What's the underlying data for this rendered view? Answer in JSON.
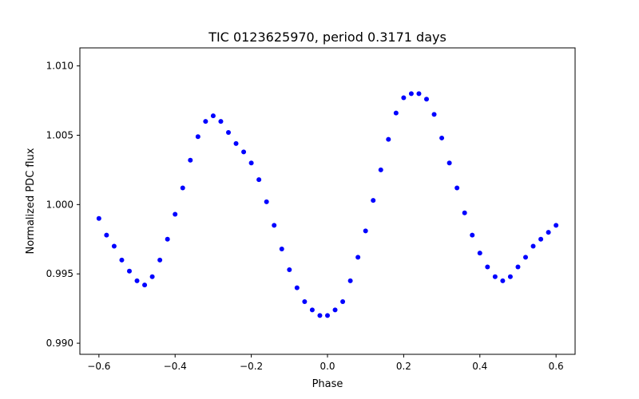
{
  "chart_data": {
    "type": "scatter",
    "title": "TIC 0123625970, period 0.3171 days",
    "xlabel": "Phase",
    "ylabel": "Normalized PDC flux",
    "xlim": [
      -0.65,
      0.65
    ],
    "ylim": [
      0.9892,
      1.0113
    ],
    "xticks": [
      -0.6,
      -0.4,
      -0.2,
      0.0,
      0.2,
      0.4,
      0.6
    ],
    "xtick_labels": [
      "−0.6",
      "−0.4",
      "−0.2",
      "0.0",
      "0.2",
      "0.4",
      "0.6"
    ],
    "yticks": [
      0.99,
      0.995,
      1.0,
      1.005,
      1.01
    ],
    "ytick_labels": [
      "0.990",
      "0.995",
      "1.000",
      "1.005",
      "1.010"
    ],
    "grid": false,
    "marker_color": "#0000ff",
    "series": [
      {
        "x": [
          -0.6,
          -0.58,
          -0.56,
          -0.54,
          -0.52,
          -0.5,
          -0.48,
          -0.46,
          -0.44,
          -0.42,
          -0.4,
          -0.38,
          -0.36,
          -0.34,
          -0.32,
          -0.3,
          -0.28,
          -0.26,
          -0.24,
          -0.22,
          -0.2,
          -0.18,
          -0.16,
          -0.14,
          -0.12,
          -0.1,
          -0.08,
          -0.06,
          -0.04,
          -0.02,
          0.0,
          0.02,
          0.04,
          0.06,
          0.08,
          0.1,
          0.12,
          0.14,
          0.16,
          0.18,
          0.2,
          0.22,
          0.24,
          0.26,
          0.28,
          0.3,
          0.32,
          0.34,
          0.36,
          0.38,
          0.4,
          0.42,
          0.44,
          0.46,
          0.48,
          0.5,
          0.52,
          0.54,
          0.56,
          0.58,
          0.6
        ],
        "y": [
          0.999,
          0.9978,
          0.997,
          0.996,
          0.9952,
          0.9945,
          0.9942,
          0.9948,
          0.996,
          0.9975,
          0.9993,
          1.0012,
          1.0032,
          1.0049,
          1.006,
          1.0064,
          1.006,
          1.0052,
          1.0044,
          1.0038,
          1.003,
          1.0018,
          1.0002,
          0.9985,
          0.9968,
          0.9953,
          0.994,
          0.993,
          0.9924,
          0.992,
          0.992,
          0.9924,
          0.993,
          0.9945,
          0.9962,
          0.9981,
          1.0003,
          1.0025,
          1.0047,
          1.0066,
          1.0077,
          1.008,
          1.008,
          1.0076,
          1.0065,
          1.0048,
          1.003,
          1.0012,
          0.9994,
          0.9978,
          0.9965,
          0.9955,
          0.9948,
          0.9945,
          0.9948,
          0.9955,
          0.9962,
          0.997,
          0.9975,
          0.998,
          0.9985
        ]
      }
    ]
  }
}
